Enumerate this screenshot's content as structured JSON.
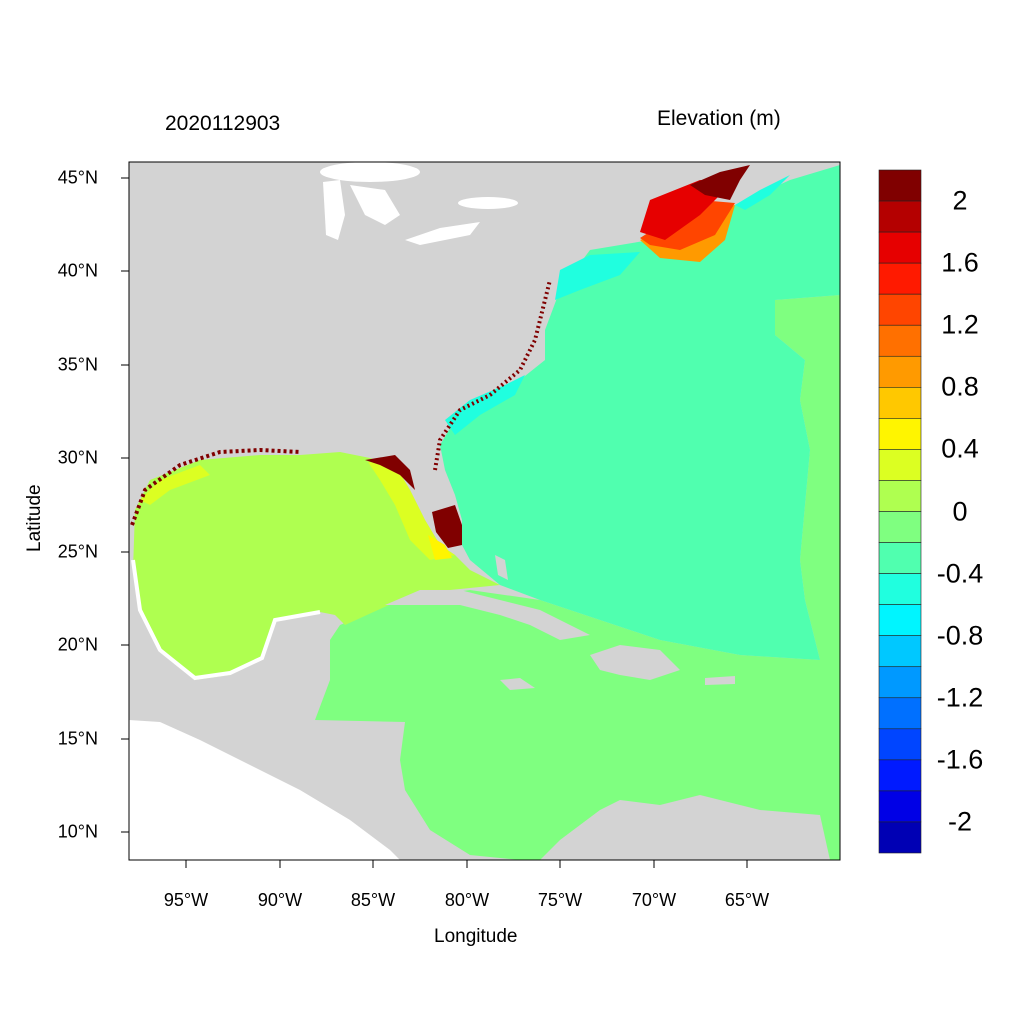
{
  "header": {
    "date": "2020112903",
    "variable": "Elevation (m)"
  },
  "axes": {
    "xlabel": "Longitude",
    "ylabel": "Latitude",
    "xticks": [
      "95°W",
      "90°W",
      "85°W",
      "80°W",
      "75°W",
      "70°W",
      "65°W"
    ],
    "yticks": [
      "45°N",
      "40°N",
      "35°N",
      "30°N",
      "25°N",
      "20°N",
      "15°N",
      "10°N"
    ],
    "xrange_deg": [
      -98,
      -60
    ],
    "yrange_deg": [
      8.5,
      46
    ]
  },
  "colorbar": {
    "labels": [
      "2",
      "1.6",
      "1.2",
      "0.8",
      "0.4",
      "0",
      "-0.4",
      "-0.8",
      "-1.2",
      "-1.6",
      "-2"
    ],
    "colors": [
      "#800000",
      "#b40000",
      "#e60000",
      "#ff1a00",
      "#ff4500",
      "#ff7000",
      "#ff9a00",
      "#ffc800",
      "#fff500",
      "#dcff22",
      "#afff50",
      "#7fff80",
      "#50ffaf",
      "#20ffdf",
      "#00f5ff",
      "#00c8ff",
      "#0099ff",
      "#0070ff",
      "#0045ff",
      "#001aff",
      "#0000e6",
      "#0000b4"
    ]
  },
  "colors": {
    "land": "#d3d3d3",
    "water_nodata": "#ffffff"
  }
}
